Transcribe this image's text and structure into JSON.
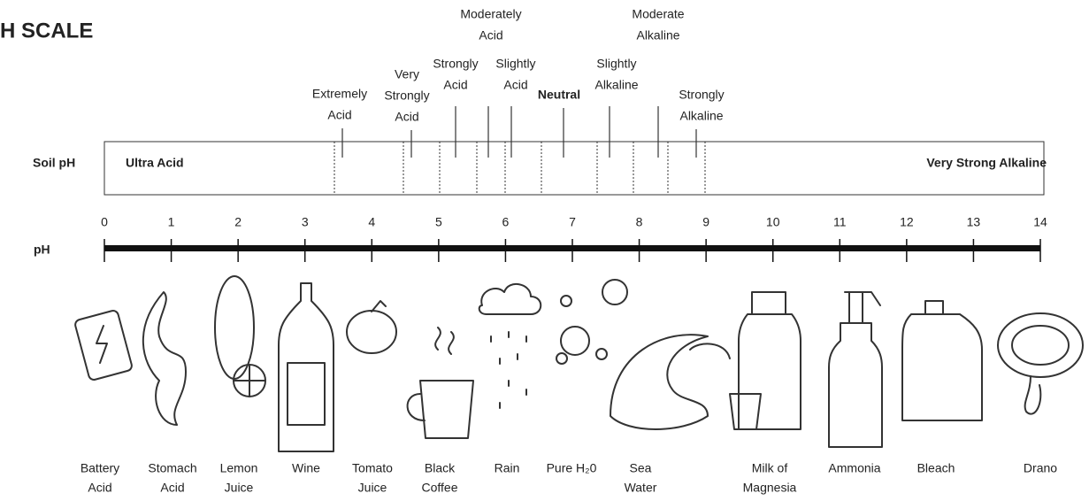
{
  "title": "H SCALE",
  "soil": {
    "label": "Soil pH",
    "left": "Ultra Acid",
    "right": "Very Strong Alkaline",
    "classes": [
      {
        "lines": [
          "Extremely",
          "Acid"
        ]
      },
      {
        "lines": [
          "Very",
          "Strongly",
          "Acid"
        ]
      },
      {
        "lines": [
          "Strongly",
          "Acid"
        ]
      },
      {
        "lines": [
          "Moderately",
          "Acid"
        ]
      },
      {
        "lines": [
          "Slightly",
          "Acid"
        ]
      },
      {
        "lines": [
          "Neutral"
        ]
      },
      {
        "lines": [
          "Slightly",
          "Alkaline"
        ]
      },
      {
        "lines": [
          "Moderate",
          "Alkaline"
        ]
      },
      {
        "lines": [
          "Strongly",
          "Alkaline"
        ]
      }
    ]
  },
  "scale": {
    "label": "pH",
    "ticks": [
      0,
      1,
      2,
      3,
      4,
      5,
      6,
      7,
      8,
      9,
      10,
      11,
      12,
      13,
      14
    ]
  },
  "items": [
    {
      "lines": [
        "Battery",
        "Acid"
      ]
    },
    {
      "lines": [
        "Stomach",
        "Acid"
      ]
    },
    {
      "lines": [
        "Lemon",
        "Juice"
      ]
    },
    {
      "lines": [
        "Wine"
      ]
    },
    {
      "lines": [
        "Tomato",
        "Juice"
      ]
    },
    {
      "lines": [
        "Black",
        "Coffee"
      ]
    },
    {
      "lines": [
        "Rain"
      ]
    },
    {
      "lines": [
        "Pure H₂0"
      ]
    },
    {
      "lines": [
        "Sea",
        "Water"
      ]
    },
    {
      "lines": [
        "Milk of",
        "Magnesia"
      ]
    },
    {
      "lines": [
        "Ammonia"
      ]
    },
    {
      "lines": [
        "Bleach"
      ]
    },
    {
      "lines": [
        "Drano"
      ]
    }
  ]
}
